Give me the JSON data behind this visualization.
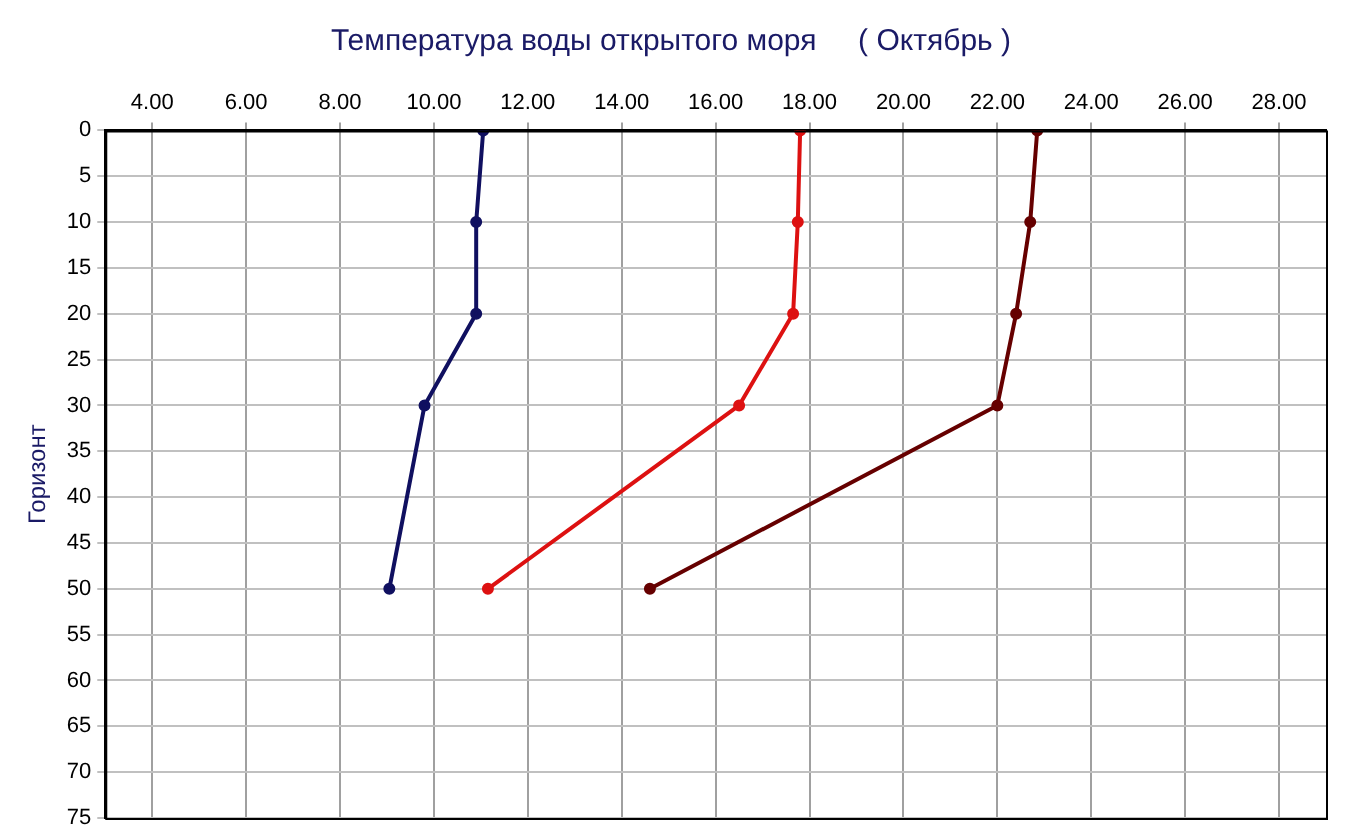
{
  "chart_data": {
    "type": "line",
    "title": "Температура воды открытого моря     ( Октябрь )",
    "ylabel": "Горизонт",
    "series": [
      {
        "color": "#101060",
        "x": [
          11.05,
          10.9,
          10.9,
          9.8,
          9.05
        ],
        "values": [
          0,
          10,
          20,
          30,
          50
        ]
      },
      {
        "color": "#dd1111",
        "x": [
          17.8,
          17.75,
          17.65,
          16.5,
          11.15
        ],
        "values": [
          0,
          10,
          20,
          30,
          50
        ]
      },
      {
        "color": "#660000",
        "x": [
          22.85,
          22.7,
          22.4,
          22.0,
          14.6
        ],
        "values": [
          0,
          10,
          20,
          30,
          50
        ]
      }
    ],
    "xlim": [
      3,
      29
    ],
    "xticks": [
      {
        "value": 4,
        "label": "4.00"
      },
      {
        "value": 6,
        "label": "6.00"
      },
      {
        "value": 8,
        "label": "8.00"
      },
      {
        "value": 10,
        "label": "10.00"
      },
      {
        "value": 12,
        "label": "12.00"
      },
      {
        "value": 14,
        "label": "14.00"
      },
      {
        "value": 16,
        "label": "16.00"
      },
      {
        "value": 18,
        "label": "18.00"
      },
      {
        "value": 20,
        "label": "20.00"
      },
      {
        "value": 22,
        "label": "22.00"
      },
      {
        "value": 24,
        "label": "24.00"
      },
      {
        "value": 26,
        "label": "26.00"
      },
      {
        "value": 28,
        "label": "28.00"
      }
    ],
    "ylim": [
      75,
      0
    ],
    "yticks": [
      0,
      5,
      10,
      15,
      20,
      25,
      30,
      35,
      40,
      45,
      50,
      55,
      60,
      65,
      70,
      75
    ],
    "grid": true,
    "legend": false,
    "marker": "circle",
    "line_style": "solid"
  }
}
